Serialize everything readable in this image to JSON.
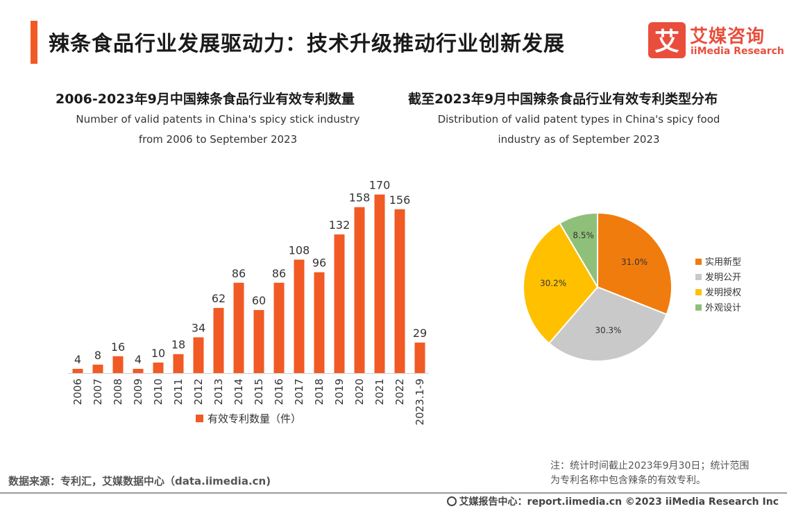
{
  "header": {
    "title": "辣条食品行业发展驱动力：技术升级推动行业创新发展"
  },
  "logo": {
    "mark": "艾",
    "cn": "艾媒咨询",
    "en": "iiMedia Research"
  },
  "colors": {
    "accent": "#f15a24",
    "bar": "#f15a24"
  },
  "chart_data": [
    {
      "type": "bar",
      "title": "2006-2023年9月中国辣条食品行业有效专利数量",
      "subtitle_line1": "Number of valid patents in China's spicy stick industry",
      "subtitle_line2": "from 2006 to September 2023",
      "categories": [
        "2006",
        "2007",
        "2008",
        "2009",
        "2010",
        "2011",
        "2012",
        "2013",
        "2014",
        "2015",
        "2016",
        "2017",
        "2018",
        "2019",
        "2020",
        "2021",
        "2022",
        "2023.1-9"
      ],
      "series": [
        {
          "name": "有效专利数量（件）",
          "values": [
            4,
            8,
            16,
            4,
            10,
            18,
            34,
            62,
            86,
            60,
            86,
            108,
            96,
            132,
            158,
            170,
            156,
            29
          ],
          "color": "#f15a24"
        }
      ],
      "ylim": [
        0,
        175
      ],
      "legend": "bottom",
      "xlabel": "",
      "ylabel": ""
    },
    {
      "type": "pie",
      "title": "截至2023年9月中国辣条食品行业有效专利类型分布",
      "subtitle_line1": "Distribution of valid patent types in China's spicy food",
      "subtitle_line2": "industry as of September 2023",
      "slices": [
        {
          "label": "实用新型",
          "value": 31.0,
          "display": "31.0%",
          "color": "#f07c0e"
        },
        {
          "label": "发明公开",
          "value": 30.3,
          "display": "30.3%",
          "color": "#c9c9c9"
        },
        {
          "label": "发明授权",
          "value": 30.2,
          "display": "30.2%",
          "color": "#ffc000"
        },
        {
          "label": "外观设计",
          "value": 8.5,
          "display": "8.5%",
          "color": "#8fc07a"
        }
      ],
      "legend": "right"
    }
  ],
  "note": {
    "text": "注：统计时间截止2023年9月30日；统计范围为专利名称中包含辣条的有效专利。"
  },
  "source": {
    "text": "数据来源：专利汇，艾媒数据中心（data.iimedia.cn)"
  },
  "footer": {
    "text": "艾媒报告中心：report.iimedia.cn   ©2023  iiMedia Research  Inc"
  }
}
